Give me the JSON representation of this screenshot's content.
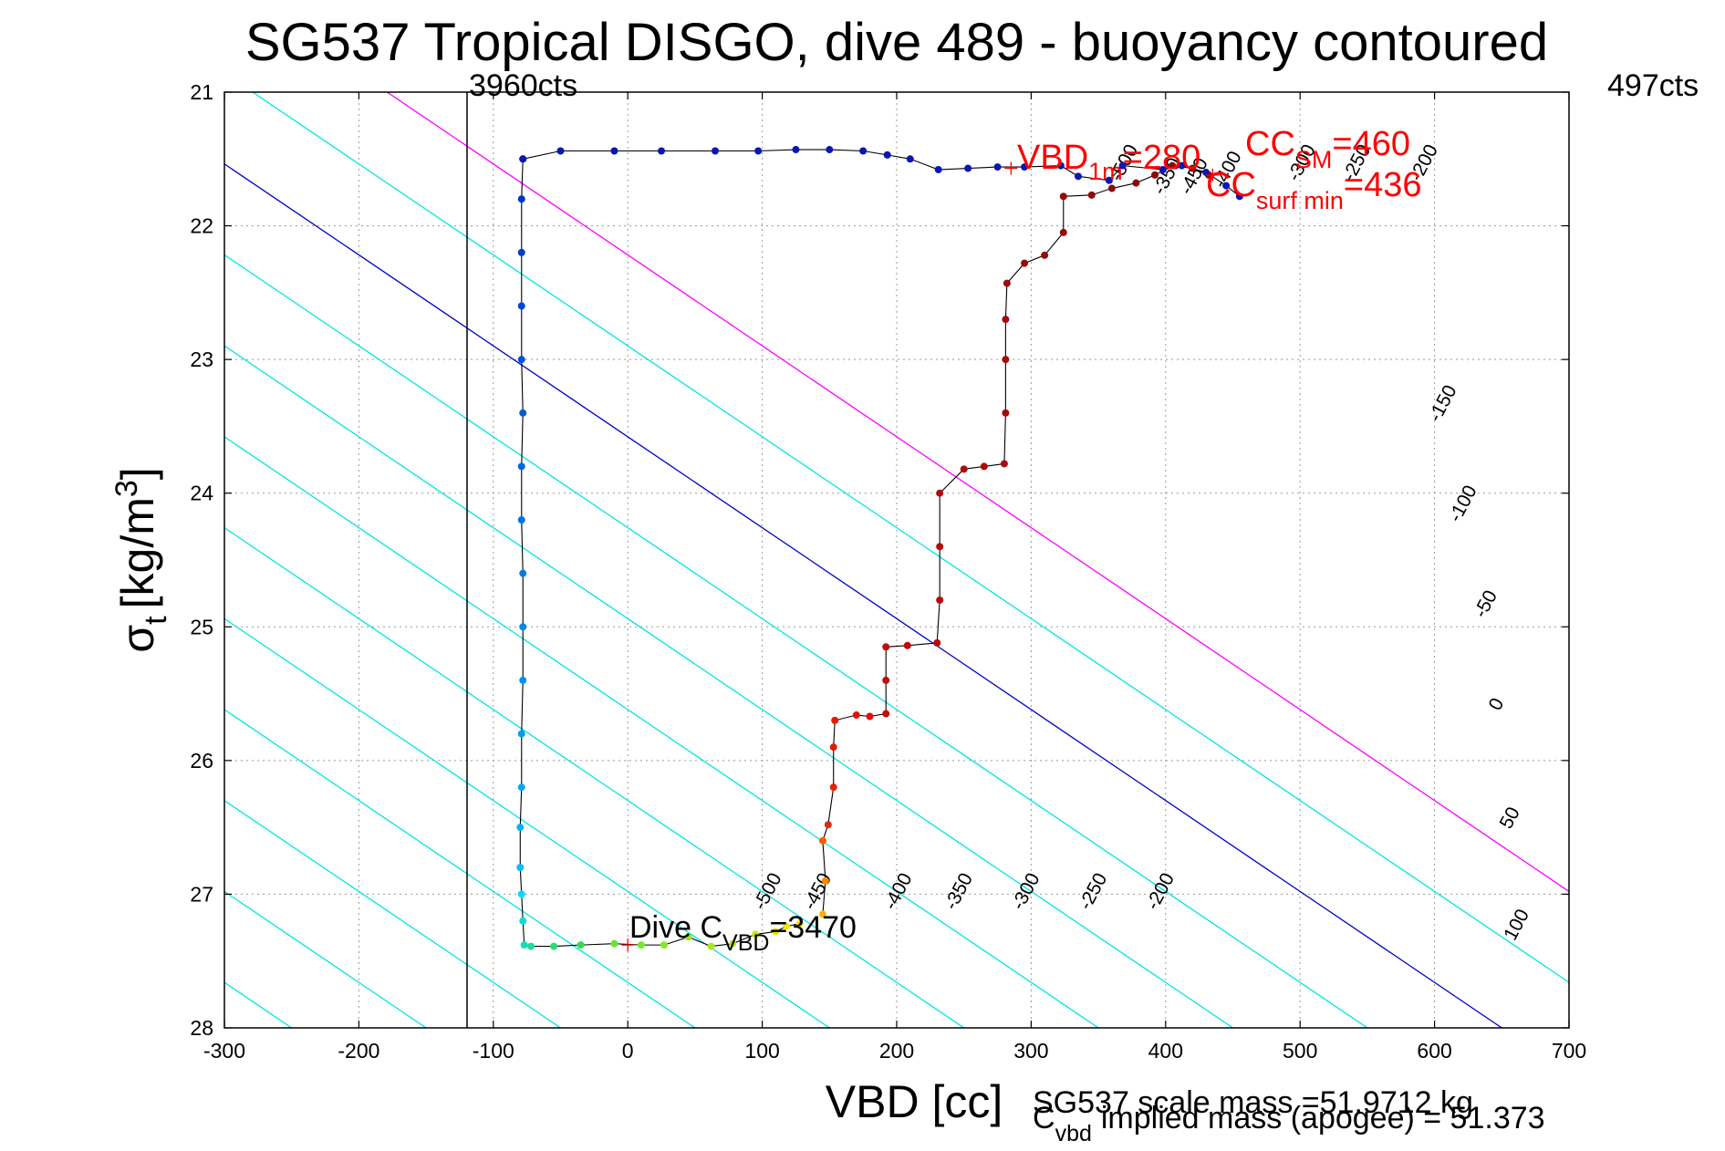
{
  "chart_data": {
    "type": "scatter",
    "title": "SG537 Tropical DISGO, dive 489 - buoyancy contoured",
    "xlabel": "VBD [cc]",
    "ylabel_main": "σ",
    "ylabel_sub": "t",
    "ylabel_rest": "[kg/m",
    "ylabel_sup": "3",
    "ylabel_close": "]",
    "xlim": [
      -300,
      700
    ],
    "ylim": [
      21,
      28
    ],
    "y_reversed": true,
    "grid": true,
    "xticks": [
      "-300",
      "-200",
      "-100",
      "0",
      "100",
      "200",
      "300",
      "400",
      "500",
      "600",
      "700"
    ],
    "yticks": [
      "21",
      "22",
      "23",
      "24",
      "25",
      "26",
      "27",
      "28"
    ],
    "colors": {
      "contour_cyan": "#00e5e5",
      "contour_zero": "#0000cc",
      "contour_100": "#ff00ff",
      "annotation_red": "#ff0000",
      "track_line": "#000000"
    },
    "vline": {
      "x": -120,
      "label": "3960cts"
    },
    "corner_label": "497cts",
    "contours": [
      {
        "level": -500,
        "label": "-500",
        "color": "cyan"
      },
      {
        "level": -450,
        "label": "-450",
        "color": "cyan"
      },
      {
        "level": -400,
        "label": "-400",
        "color": "cyan"
      },
      {
        "level": -350,
        "label": "-350",
        "color": "cyan"
      },
      {
        "level": -300,
        "label": "-300",
        "color": "cyan"
      },
      {
        "level": -250,
        "label": "-250",
        "color": "cyan"
      },
      {
        "level": -200,
        "label": "-200",
        "color": "cyan"
      },
      {
        "level": -150,
        "label": "-150",
        "color": "cyan"
      },
      {
        "level": -100,
        "label": "-100",
        "color": "cyan"
      },
      {
        "level": -50,
        "label": "-50",
        "color": "cyan"
      },
      {
        "level": 0,
        "label": "0",
        "color": "blue"
      },
      {
        "level": 50,
        "label": "50",
        "color": "cyan"
      },
      {
        "level": 100,
        "label": "100",
        "color": "magenta"
      }
    ],
    "dive_track": [
      [
        -78,
        21.5
      ],
      [
        -79,
        21.8
      ],
      [
        -79,
        22.2
      ],
      [
        -79,
        22.6
      ],
      [
        -79,
        23.0
      ],
      [
        -78,
        23.4
      ],
      [
        -79,
        23.8
      ],
      [
        -79,
        24.2
      ],
      [
        -78,
        24.6
      ],
      [
        -78,
        25.0
      ],
      [
        -78,
        25.4
      ],
      [
        -79,
        25.8
      ],
      [
        -79,
        26.2
      ],
      [
        -80,
        26.5
      ],
      [
        -80,
        26.8
      ],
      [
        -79,
        27.0
      ],
      [
        -78,
        27.2
      ],
      [
        -77,
        27.38
      ],
      [
        -72,
        27.39
      ],
      [
        -55,
        27.39
      ],
      [
        -35,
        27.38
      ],
      [
        -10,
        27.37
      ],
      [
        10,
        27.38
      ],
      [
        27,
        27.38
      ],
      [
        45,
        27.32
      ],
      [
        62,
        27.39
      ],
      [
        78,
        27.37
      ],
      [
        95,
        27.3
      ],
      [
        110,
        27.28
      ],
      [
        118,
        27.24
      ],
      [
        128,
        27.22
      ]
    ],
    "climb_track": [
      [
        145,
        27.15
      ],
      [
        147,
        26.9
      ],
      [
        145,
        26.6
      ],
      [
        149,
        26.48
      ],
      [
        153,
        26.2
      ],
      [
        153,
        25.9
      ],
      [
        154,
        25.7
      ],
      [
        170,
        25.66
      ],
      [
        180,
        25.67
      ],
      [
        192,
        25.65
      ],
      [
        192,
        25.4
      ],
      [
        192,
        25.15
      ],
      [
        208,
        25.14
      ],
      [
        230,
        25.12
      ],
      [
        232,
        24.8
      ],
      [
        232,
        24.4
      ],
      [
        232,
        24.0
      ],
      [
        250,
        23.82
      ],
      [
        265,
        23.8
      ],
      [
        280,
        23.78
      ],
      [
        281,
        23.4
      ],
      [
        281,
        23.0
      ],
      [
        281,
        22.7
      ],
      [
        282,
        22.43
      ],
      [
        295,
        22.28
      ],
      [
        310,
        22.22
      ],
      [
        324,
        22.05
      ],
      [
        324,
        21.78
      ],
      [
        345,
        21.77
      ],
      [
        360,
        21.72
      ],
      [
        378,
        21.68
      ],
      [
        392,
        21.62
      ],
      [
        405,
        21.55
      ],
      [
        420,
        21.57
      ],
      [
        432,
        21.62
      ]
    ],
    "surface_track": [
      [
        -78,
        21.5
      ],
      [
        -50,
        21.44
      ],
      [
        -10,
        21.44
      ],
      [
        25,
        21.44
      ],
      [
        65,
        21.44
      ],
      [
        97,
        21.44
      ],
      [
        125,
        21.43
      ],
      [
        150,
        21.43
      ],
      [
        175,
        21.44
      ],
      [
        193,
        21.47
      ],
      [
        210,
        21.5
      ],
      [
        231,
        21.58
      ],
      [
        253,
        21.57
      ],
      [
        275,
        21.56
      ],
      [
        295,
        21.56
      ],
      [
        322,
        21.55
      ],
      [
        335,
        21.63
      ],
      [
        358,
        21.66
      ],
      [
        368,
        21.55
      ],
      [
        398,
        21.58
      ],
      [
        412,
        21.55
      ],
      [
        430,
        21.6
      ],
      [
        445,
        21.7
      ],
      [
        455,
        21.78
      ]
    ],
    "markers": {
      "vbd_1m": [
        285,
        21.57
      ],
      "dive_cvbd": [
        0,
        27.38
      ],
      "cc_sm": [
        435,
        21.62
      ]
    },
    "annotations": {
      "vbd1m_main": "VBD",
      "vbd1m_sub": "1m",
      "vbd1m_val": "=280",
      "ccsm_main": "CC",
      "ccsm_sub": "SM",
      "ccsm_val": "=460",
      "ccsurf_main": "CC",
      "ccsurf_sub": "surf min",
      "ccsurf_val": "=436",
      "divec_main": "Dive C",
      "divec_sub": "VBD",
      "divec_val": "=3470",
      "scale_mass": "SG537 scale mass =51.9712 kg",
      "cvbd_main": "C",
      "cvbd_sub": "vbd",
      "cvbd_rest": "implied mass (apogee) = 51.373"
    }
  }
}
